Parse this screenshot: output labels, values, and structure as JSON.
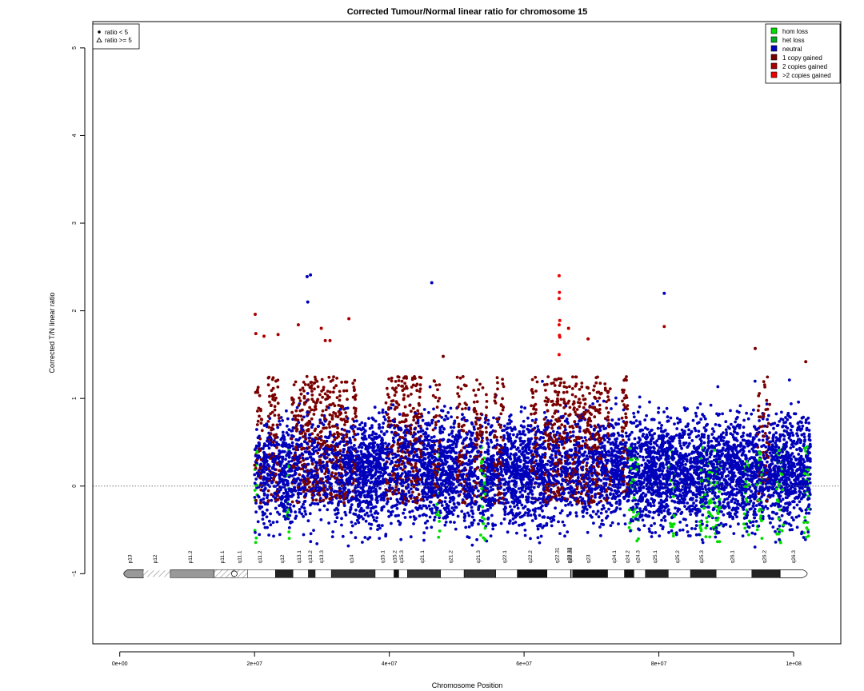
{
  "colors": {
    "hom_loss": "#00dd00",
    "het_loss": "#00aa22",
    "neutral": "#0000bb",
    "one_copy_gained": "#7a0000",
    "two_copies_gained": "#aa0000",
    "gt_two_copies_gained": "#ee0000",
    "gband_gvar": "#dddddd",
    "gband_stalk": "#999999",
    "gband_acen": "#b0b0b0"
  },
  "chart_data": {
    "type": "scatter",
    "title": "Corrected Tumour/Normal linear ratio for chromosome  15",
    "xlabel": "Chromosome Position",
    "ylabel": "Corrected T/N linear ratio",
    "xlim": [
      -4000000,
      107000000
    ],
    "ylim": [
      -1.8,
      5.3
    ],
    "x_ticks": [
      0,
      20000000,
      40000000,
      60000000,
      80000000,
      100000000
    ],
    "x_tick_labels": [
      "0e+00",
      "2e+07",
      "4e+07",
      "6e+07",
      "8e+07",
      "1e+08"
    ],
    "y_ticks": [
      -1,
      0,
      1,
      2,
      3,
      4,
      5
    ],
    "y_tick_labels": [
      "−1",
      "0",
      "1",
      "2",
      "3",
      "4",
      "5"
    ],
    "baseline_y": 0,
    "data_range": [
      20000000,
      102500000
    ],
    "shape_legend": {
      "position": "top-left",
      "entries": [
        {
          "symbol": "dot",
          "label": "ratio < 5"
        },
        {
          "symbol": "triangle",
          "label": "ratio >= 5"
        }
      ]
    },
    "legend": {
      "position": "top-right",
      "entries": [
        {
          "label": "hom loss",
          "color_key": "hom_loss"
        },
        {
          "label": "het loss",
          "color_key": "het_loss"
        },
        {
          "label": "neutral",
          "color_key": "neutral"
        },
        {
          "label": "1 copy gained",
          "color_key": "one_copy_gained"
        },
        {
          "label": "2 copies gained",
          "color_key": "two_copies_gained"
        },
        {
          "label": ">2 copies gained",
          "color_key": "gt_two_copies_gained"
        }
      ]
    },
    "gain_regions_mb": [
      [
        20.0,
        21.2
      ],
      [
        22.0,
        23.8
      ],
      [
        25.5,
        29.8
      ],
      [
        29.5,
        33.8
      ],
      [
        34.5,
        35.3
      ],
      [
        39.5,
        43.5
      ],
      [
        43.5,
        44.8
      ],
      [
        46.5,
        47.5
      ],
      [
        50.0,
        51.5
      ],
      [
        52.5,
        54.5
      ],
      [
        55.5,
        57.0
      ],
      [
        61.0,
        62.0
      ],
      [
        63.0,
        63.8
      ],
      [
        64.0,
        69.5
      ],
      [
        69.0,
        71.5
      ],
      [
        72.0,
        72.8
      ],
      [
        74.5,
        75.5
      ],
      [
        94.5,
        96.5
      ]
    ],
    "hom_loss_regions_mb": [
      [
        20.0,
        20.4
      ],
      [
        24.8,
        25.2
      ],
      [
        47.0,
        47.5
      ],
      [
        53.5,
        54.3
      ],
      [
        75.5,
        77.0
      ],
      [
        81.5,
        82.3
      ],
      [
        86.0,
        89.2
      ],
      [
        92.5,
        93.5
      ],
      [
        94.5,
        95.5
      ],
      [
        97.5,
        98.5
      ],
      [
        101.5,
        102.3
      ]
    ],
    "highlight_points": [
      {
        "x": 20100000,
        "y": 1.96
      },
      {
        "x": 20200000,
        "y": 1.74
      },
      {
        "x": 21400000,
        "y": 1.71
      },
      {
        "x": 23500000,
        "y": 1.73
      },
      {
        "x": 26500000,
        "y": 1.84
      },
      {
        "x": 27800000,
        "y": 2.39
      },
      {
        "x": 28300000,
        "y": 2.41
      },
      {
        "x": 27900000,
        "y": 2.1
      },
      {
        "x": 29900000,
        "y": 1.8
      },
      {
        "x": 30500000,
        "y": 1.66
      },
      {
        "x": 31200000,
        "y": 1.66
      },
      {
        "x": 34000000,
        "y": 1.91
      },
      {
        "x": 46300000,
        "y": 2.32
      },
      {
        "x": 48000000,
        "y": 1.48
      },
      {
        "x": 65200000,
        "y": 2.4
      },
      {
        "x": 65250000,
        "y": 2.21
      },
      {
        "x": 65200000,
        "y": 2.14
      },
      {
        "x": 65300000,
        "y": 1.89
      },
      {
        "x": 65200000,
        "y": 1.84
      },
      {
        "x": 65250000,
        "y": 1.72
      },
      {
        "x": 65300000,
        "y": 1.7
      },
      {
        "x": 65200000,
        "y": 1.5
      },
      {
        "x": 66600000,
        "y": 1.8
      },
      {
        "x": 69500000,
        "y": 1.68
      },
      {
        "x": 80800000,
        "y": 2.2
      },
      {
        "x": 80800000,
        "y": 1.82
      },
      {
        "x": 94300000,
        "y": 1.57
      },
      {
        "x": 101800000,
        "y": 1.42
      }
    ],
    "ideogram": {
      "y": -1,
      "start": 0,
      "end": 102500000,
      "centromere": 17000000,
      "bands": [
        {
          "name": "p13",
          "start": 0,
          "end": 3500000,
          "stain": "gvar"
        },
        {
          "name": "p12",
          "start": 3500000,
          "end": 7500000,
          "stain": "stalk"
        },
        {
          "name": "p11.2",
          "start": 7500000,
          "end": 14000000,
          "stain": "gvar"
        },
        {
          "name": "p11.1",
          "start": 14000000,
          "end": 17000000,
          "stain": "acen"
        },
        {
          "name": "q11.1",
          "start": 17000000,
          "end": 19000000,
          "stain": "acen"
        },
        {
          "name": "q11.2",
          "start": 19000000,
          "end": 23100000,
          "stain": "gneg"
        },
        {
          "name": "q12",
          "start": 23100000,
          "end": 25700000,
          "stain": "gpos50"
        },
        {
          "name": "q13.1",
          "start": 25700000,
          "end": 28000000,
          "stain": "gneg"
        },
        {
          "name": "q13.2",
          "start": 28000000,
          "end": 29000000,
          "stain": "gpos50"
        },
        {
          "name": "q13.3",
          "start": 29000000,
          "end": 31400000,
          "stain": "gneg"
        },
        {
          "name": "q14",
          "start": 31400000,
          "end": 37900000,
          "stain": "gpos75"
        },
        {
          "name": "q15.1",
          "start": 37900000,
          "end": 40700000,
          "stain": "gneg"
        },
        {
          "name": "q15.2",
          "start": 40700000,
          "end": 41400000,
          "stain": "gpos25"
        },
        {
          "name": "q15.3",
          "start": 41400000,
          "end": 42700000,
          "stain": "gneg"
        },
        {
          "name": "q21.1",
          "start": 42700000,
          "end": 47600000,
          "stain": "gpos75"
        },
        {
          "name": "q21.2",
          "start": 47600000,
          "end": 51100000,
          "stain": "gneg"
        },
        {
          "name": "q21.3",
          "start": 51100000,
          "end": 55800000,
          "stain": "gpos75"
        },
        {
          "name": "q22.1",
          "start": 55800000,
          "end": 59000000,
          "stain": "gneg"
        },
        {
          "name": "q22.2",
          "start": 59000000,
          "end": 63400000,
          "stain": "gpos25"
        },
        {
          "name": "q22.31",
          "start": 63400000,
          "end": 66900000,
          "stain": "gneg"
        },
        {
          "name": "q22.32",
          "start": 66900000,
          "end": 67000000,
          "stain": "gpos25"
        },
        {
          "name": "q22.33",
          "start": 67000000,
          "end": 67200000,
          "stain": "gneg"
        },
        {
          "name": "q23",
          "start": 67200000,
          "end": 72400000,
          "stain": "gpos25"
        },
        {
          "name": "q24.1",
          "start": 72400000,
          "end": 74900000,
          "stain": "gneg"
        },
        {
          "name": "q24.2",
          "start": 74900000,
          "end": 76300000,
          "stain": "gpos25"
        },
        {
          "name": "q24.3",
          "start": 76300000,
          "end": 78000000,
          "stain": "gneg"
        },
        {
          "name": "q25.1",
          "start": 78000000,
          "end": 81400000,
          "stain": "gpos50"
        },
        {
          "name": "q25.2",
          "start": 81400000,
          "end": 84700000,
          "stain": "gneg"
        },
        {
          "name": "q25.3",
          "start": 84700000,
          "end": 88500000,
          "stain": "gpos50"
        },
        {
          "name": "q26.1",
          "start": 88500000,
          "end": 93800000,
          "stain": "gneg"
        },
        {
          "name": "q26.2",
          "start": 93800000,
          "end": 98000000,
          "stain": "gpos50"
        },
        {
          "name": "q26.3",
          "start": 98000000,
          "end": 102500000,
          "stain": "gneg"
        }
      ]
    }
  }
}
